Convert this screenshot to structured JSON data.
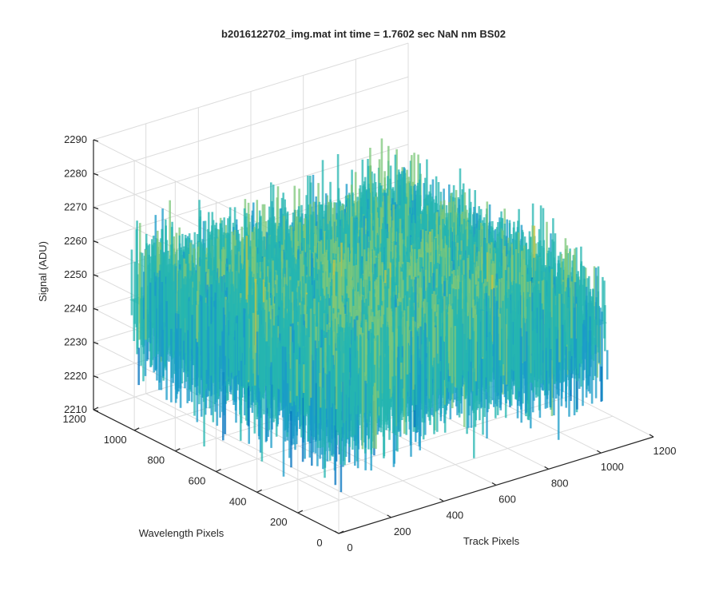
{
  "chart_data": {
    "type": "surface3d",
    "title": "b2016122702_img.mat int time = 1.7602 sec  NaN nm BS02",
    "xlabel": "Track Pixels",
    "ylabel": "Wavelength Pixels",
    "zlabel": "Signal (ADU)",
    "xlim": [
      0,
      1200
    ],
    "ylim": [
      0,
      1200
    ],
    "zlim": [
      2210,
      2290
    ],
    "x_ticks": [
      "0",
      "200",
      "400",
      "600",
      "800",
      "1000",
      "1200"
    ],
    "y_ticks": [
      "0",
      "200",
      "400",
      "600",
      "800",
      "1000",
      "1200"
    ],
    "z_ticks": [
      "2210",
      "2220",
      "2230",
      "2240",
      "2250",
      "2260",
      "2270",
      "2280",
      "2290"
    ],
    "data_extent": {
      "x": [
        0,
        1024
      ],
      "y": [
        0,
        1024
      ]
    },
    "surface": {
      "description_values": "noisy detector image, mean approx 2248 ADU, spread approx 2215-2285 ADU",
      "mean": 2248,
      "noise_range": [
        2215,
        2285
      ]
    },
    "grid": true,
    "colormap": [
      "#0072bd",
      "#1a9bc8",
      "#26b5b0",
      "#7cc77a",
      "#c9c63f",
      "#f0b83a"
    ]
  }
}
